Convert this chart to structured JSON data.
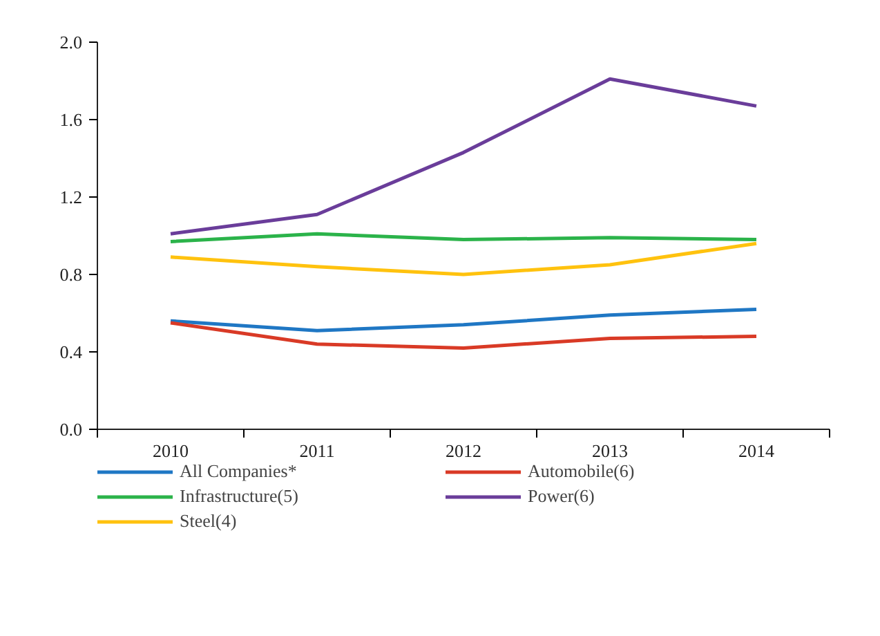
{
  "chart_data": {
    "type": "line",
    "categories": [
      "2010",
      "2011",
      "2012",
      "2013",
      "2014"
    ],
    "ylim": [
      0,
      2.0
    ],
    "yticks": [
      {
        "value": 0,
        "label": "0.0"
      },
      {
        "value": 0.4,
        "label": "0.4"
      },
      {
        "value": 0.8,
        "label": "0.8"
      },
      {
        "value": 1.2,
        "label": "1.2"
      },
      {
        "value": 1.6,
        "label": "1.6"
      },
      {
        "value": 2.0,
        "label": "2.0"
      }
    ],
    "grid": false,
    "legend": "bottom",
    "marker": "none",
    "line_style": "solid",
    "series": [
      {
        "name": "All Companies*",
        "color": "#1f77c4",
        "values": [
          0.56,
          0.51,
          0.54,
          0.59,
          0.62
        ]
      },
      {
        "name": "Automobile(6)",
        "color": "#d93a26",
        "values": [
          0.55,
          0.44,
          0.42,
          0.47,
          0.48
        ]
      },
      {
        "name": "Infrastructure(5)",
        "color": "#2bb34a",
        "values": [
          0.97,
          1.01,
          0.98,
          0.99,
          0.98
        ]
      },
      {
        "name": "Power(6)",
        "color": "#6a3d9a",
        "values": [
          1.01,
          1.11,
          1.43,
          1.81,
          1.67
        ]
      },
      {
        "name": "Steel(4)",
        "color": "#ffc20e",
        "values": [
          0.89,
          0.84,
          0.8,
          0.85,
          0.96
        ]
      }
    ]
  }
}
